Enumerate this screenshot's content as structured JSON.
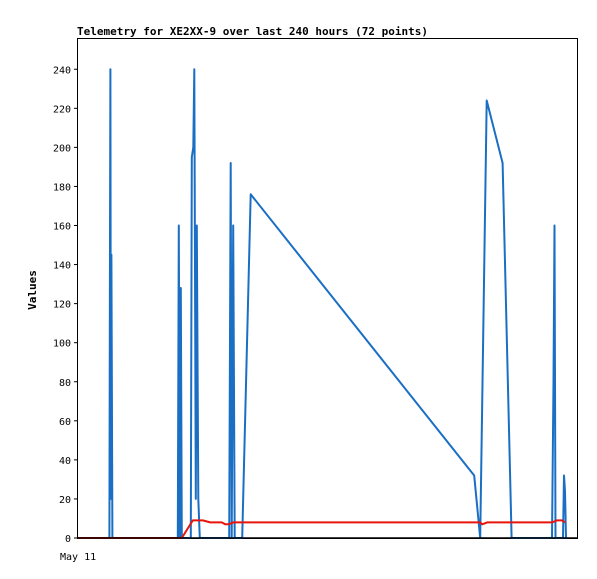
{
  "chart_data": {
    "type": "line",
    "title": "Telemetry for XE2XX-9 over last 240 hours (72 points)",
    "ylabel": "Values",
    "xlabel": "",
    "x_tick_labels": [
      "May 11"
    ],
    "y_ticks": [
      0,
      20,
      40,
      60,
      80,
      100,
      120,
      140,
      160,
      180,
      200,
      220,
      240
    ],
    "xlim": [
      0,
      100
    ],
    "ylim": [
      0,
      256
    ],
    "grid": false,
    "series": [
      {
        "color": "#1a6fc4",
        "x": [
          0,
          6.3,
          6.4,
          6.5,
          6.6,
          6.7,
          6.8,
          6.9,
          7.0,
          7.3,
          20.0,
          20.2,
          20.4,
          20.6,
          20.8,
          22.6,
          22.8,
          23.1,
          23.3,
          23.6,
          23.8,
          24.1,
          24.4,
          24.7,
          30.3,
          30.6,
          30.8,
          31.1,
          31.4,
          31.7,
          32.9,
          34.6,
          79.4,
          80.6,
          81.9,
          85.1,
          86.9,
          95.0,
          95.3,
          95.5,
          95.7,
          97.2,
          97.4,
          97.6,
          97.8,
          98.0
        ],
        "y": [
          0,
          0,
          130,
          240,
          20,
          145,
          73,
          0,
          0,
          0,
          0,
          160,
          0,
          128,
          0,
          0,
          195,
          200,
          240,
          20,
          160,
          20,
          0,
          0,
          0,
          192,
          0,
          160,
          0,
          0,
          0,
          176,
          32,
          0,
          224,
          192,
          0,
          0,
          80,
          160,
          0,
          0,
          32,
          24,
          0,
          0
        ]
      },
      {
        "color": "#e8140c",
        "x": [
          0,
          20.8,
          23.0,
          25.0,
          26.5,
          28.8,
          29.5,
          30.2,
          31.1,
          32.0,
          80.6,
          81.0,
          82.0,
          95.0,
          96.0,
          97.0,
          97.6
        ],
        "y": [
          0,
          0,
          9,
          9,
          8,
          8,
          7,
          7,
          8,
          8,
          8,
          7,
          8,
          8,
          9,
          9,
          8
        ]
      },
      {
        "color": "#000000",
        "x": [
          0,
          100
        ],
        "y": [
          0,
          0
        ]
      }
    ]
  }
}
